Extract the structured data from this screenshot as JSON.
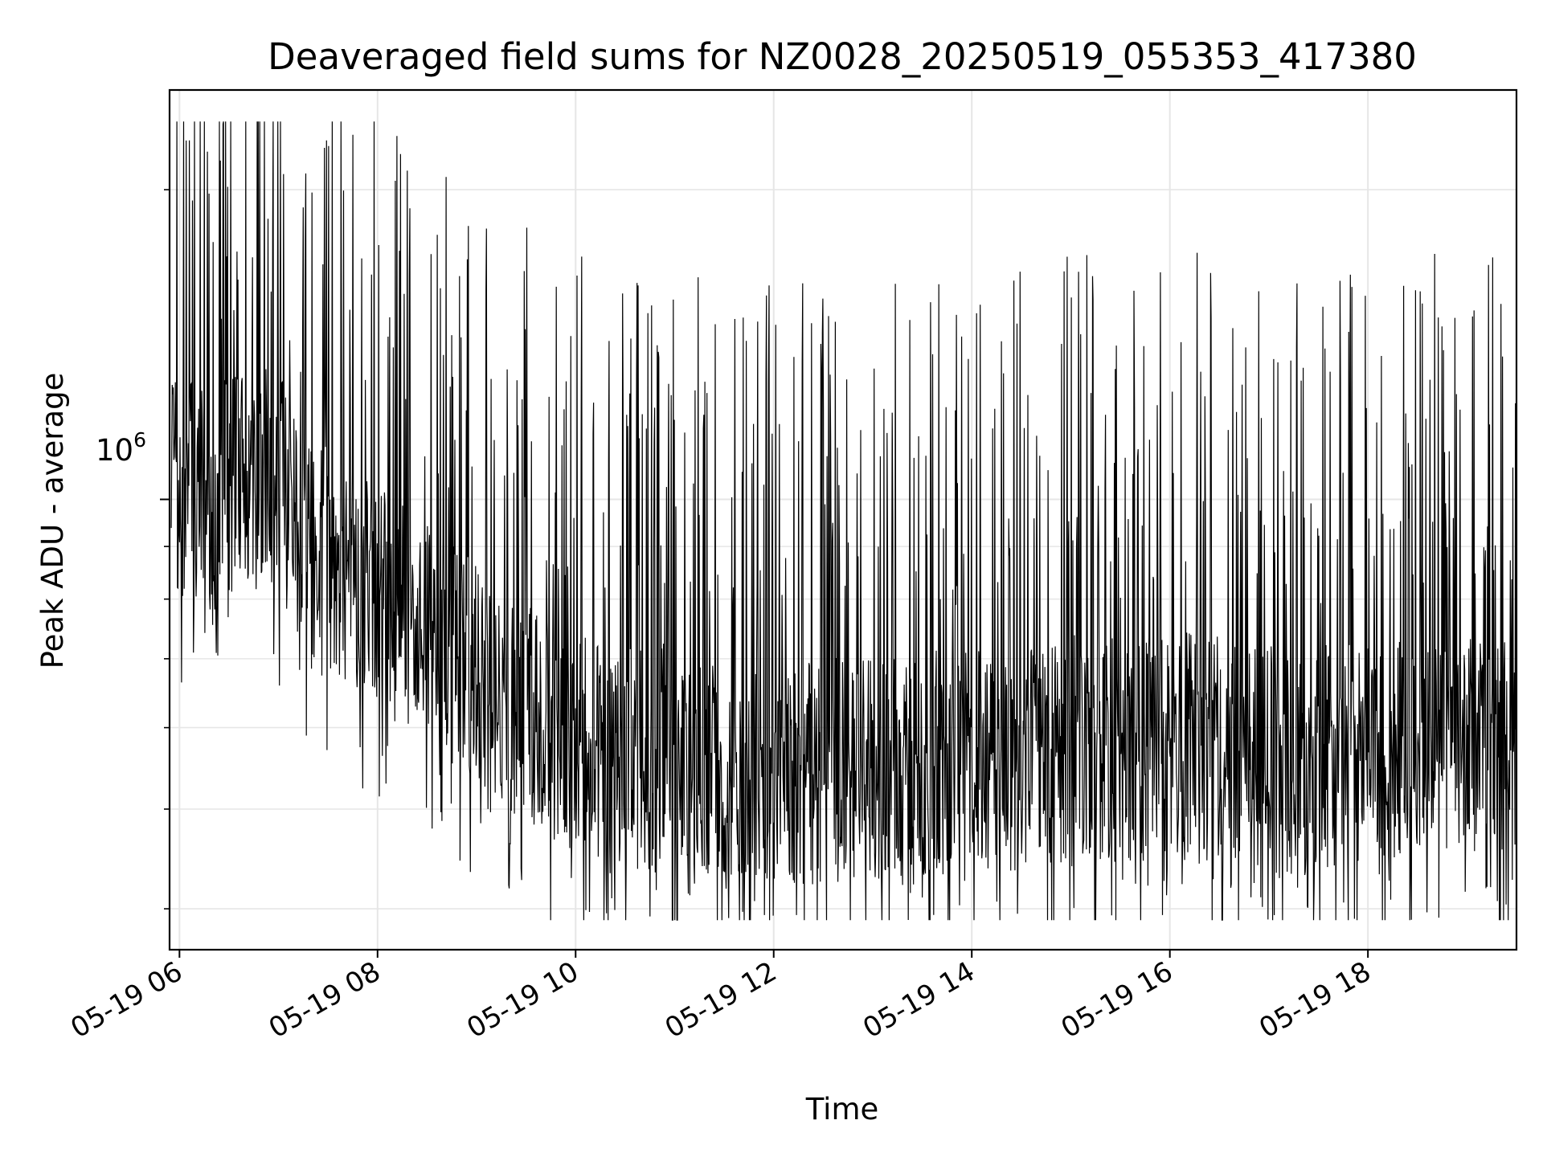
{
  "chart_data": {
    "type": "line",
    "title": "Deaveraged field sums for NZ0028_20250519_055353_417380",
    "xlabel": "Time",
    "ylabel": "Peak ADU - average",
    "x_tick_labels": [
      "05-19 06",
      "05-19 08",
      "05-19 10",
      "05-19 12",
      "05-19 14",
      "05-19 16",
      "05-19 18"
    ],
    "x_ticks": [
      "2025-05-19 06:00",
      "2025-05-19 08:00",
      "2025-05-19 10:00",
      "2025-05-19 12:00",
      "2025-05-19 14:00",
      "2025-05-19 16:00",
      "2025-05-19 18:00"
    ],
    "y_tick_base": "10",
    "y_tick_exp": "6",
    "y_tick_value": 1000000,
    "y_scale": "log",
    "xlim": [
      "2025-05-19 05:54",
      "2025-05-19 19:30"
    ],
    "ylim": [
      365000,
      2500000
    ],
    "grid": true,
    "line_color": "#000000",
    "grid_color": "#e6e6e6",
    "series": [
      {
        "x": [
          "2025-05-19 05:55",
          "2025-05-19 06:05",
          "2025-05-19 06:20",
          "2025-05-19 06:40",
          "2025-05-19 07:00",
          "2025-05-19 07:20",
          "2025-05-19 07:40",
          "2025-05-19 08:00",
          "2025-05-19 08:20",
          "2025-05-19 08:40",
          "2025-05-19 09:00",
          "2025-05-19 09:20",
          "2025-05-19 09:40",
          "2025-05-19 10:00",
          "2025-05-19 10:20",
          "2025-05-19 10:40",
          "2025-05-19 11:00",
          "2025-05-19 11:20",
          "2025-05-19 11:40",
          "2025-05-19 12:00",
          "2025-05-19 12:20",
          "2025-05-19 12:40",
          "2025-05-19 13:00",
          "2025-05-19 13:20",
          "2025-05-19 13:40",
          "2025-05-19 14:00",
          "2025-05-19 14:20",
          "2025-05-19 14:40",
          "2025-05-19 15:00",
          "2025-05-19 15:20",
          "2025-05-19 15:40",
          "2025-05-19 16:00",
          "2025-05-19 16:20",
          "2025-05-19 16:40",
          "2025-05-19 17:00",
          "2025-05-19 17:20",
          "2025-05-19 17:40",
          "2025-05-19 18:00",
          "2025-05-19 18:20",
          "2025-05-19 18:40",
          "2025-05-19 19:00",
          "2025-05-19 19:20",
          "2025-05-19 19:30"
        ],
        "y": [
          1000000,
          1050000,
          1000000,
          1080000,
          1030000,
          900000,
          850000,
          800000,
          770000,
          720000,
          680000,
          640000,
          610000,
          580000,
          550000,
          560000,
          570000,
          555000,
          545000,
          550000,
          540000,
          545000,
          550000,
          540000,
          555000,
          560000,
          565000,
          560000,
          575000,
          570000,
          565000,
          580000,
          575000,
          570000,
          560000,
          555000,
          565000,
          560000,
          570000,
          575000,
          580000,
          575000,
          570000
        ]
      }
    ]
  }
}
